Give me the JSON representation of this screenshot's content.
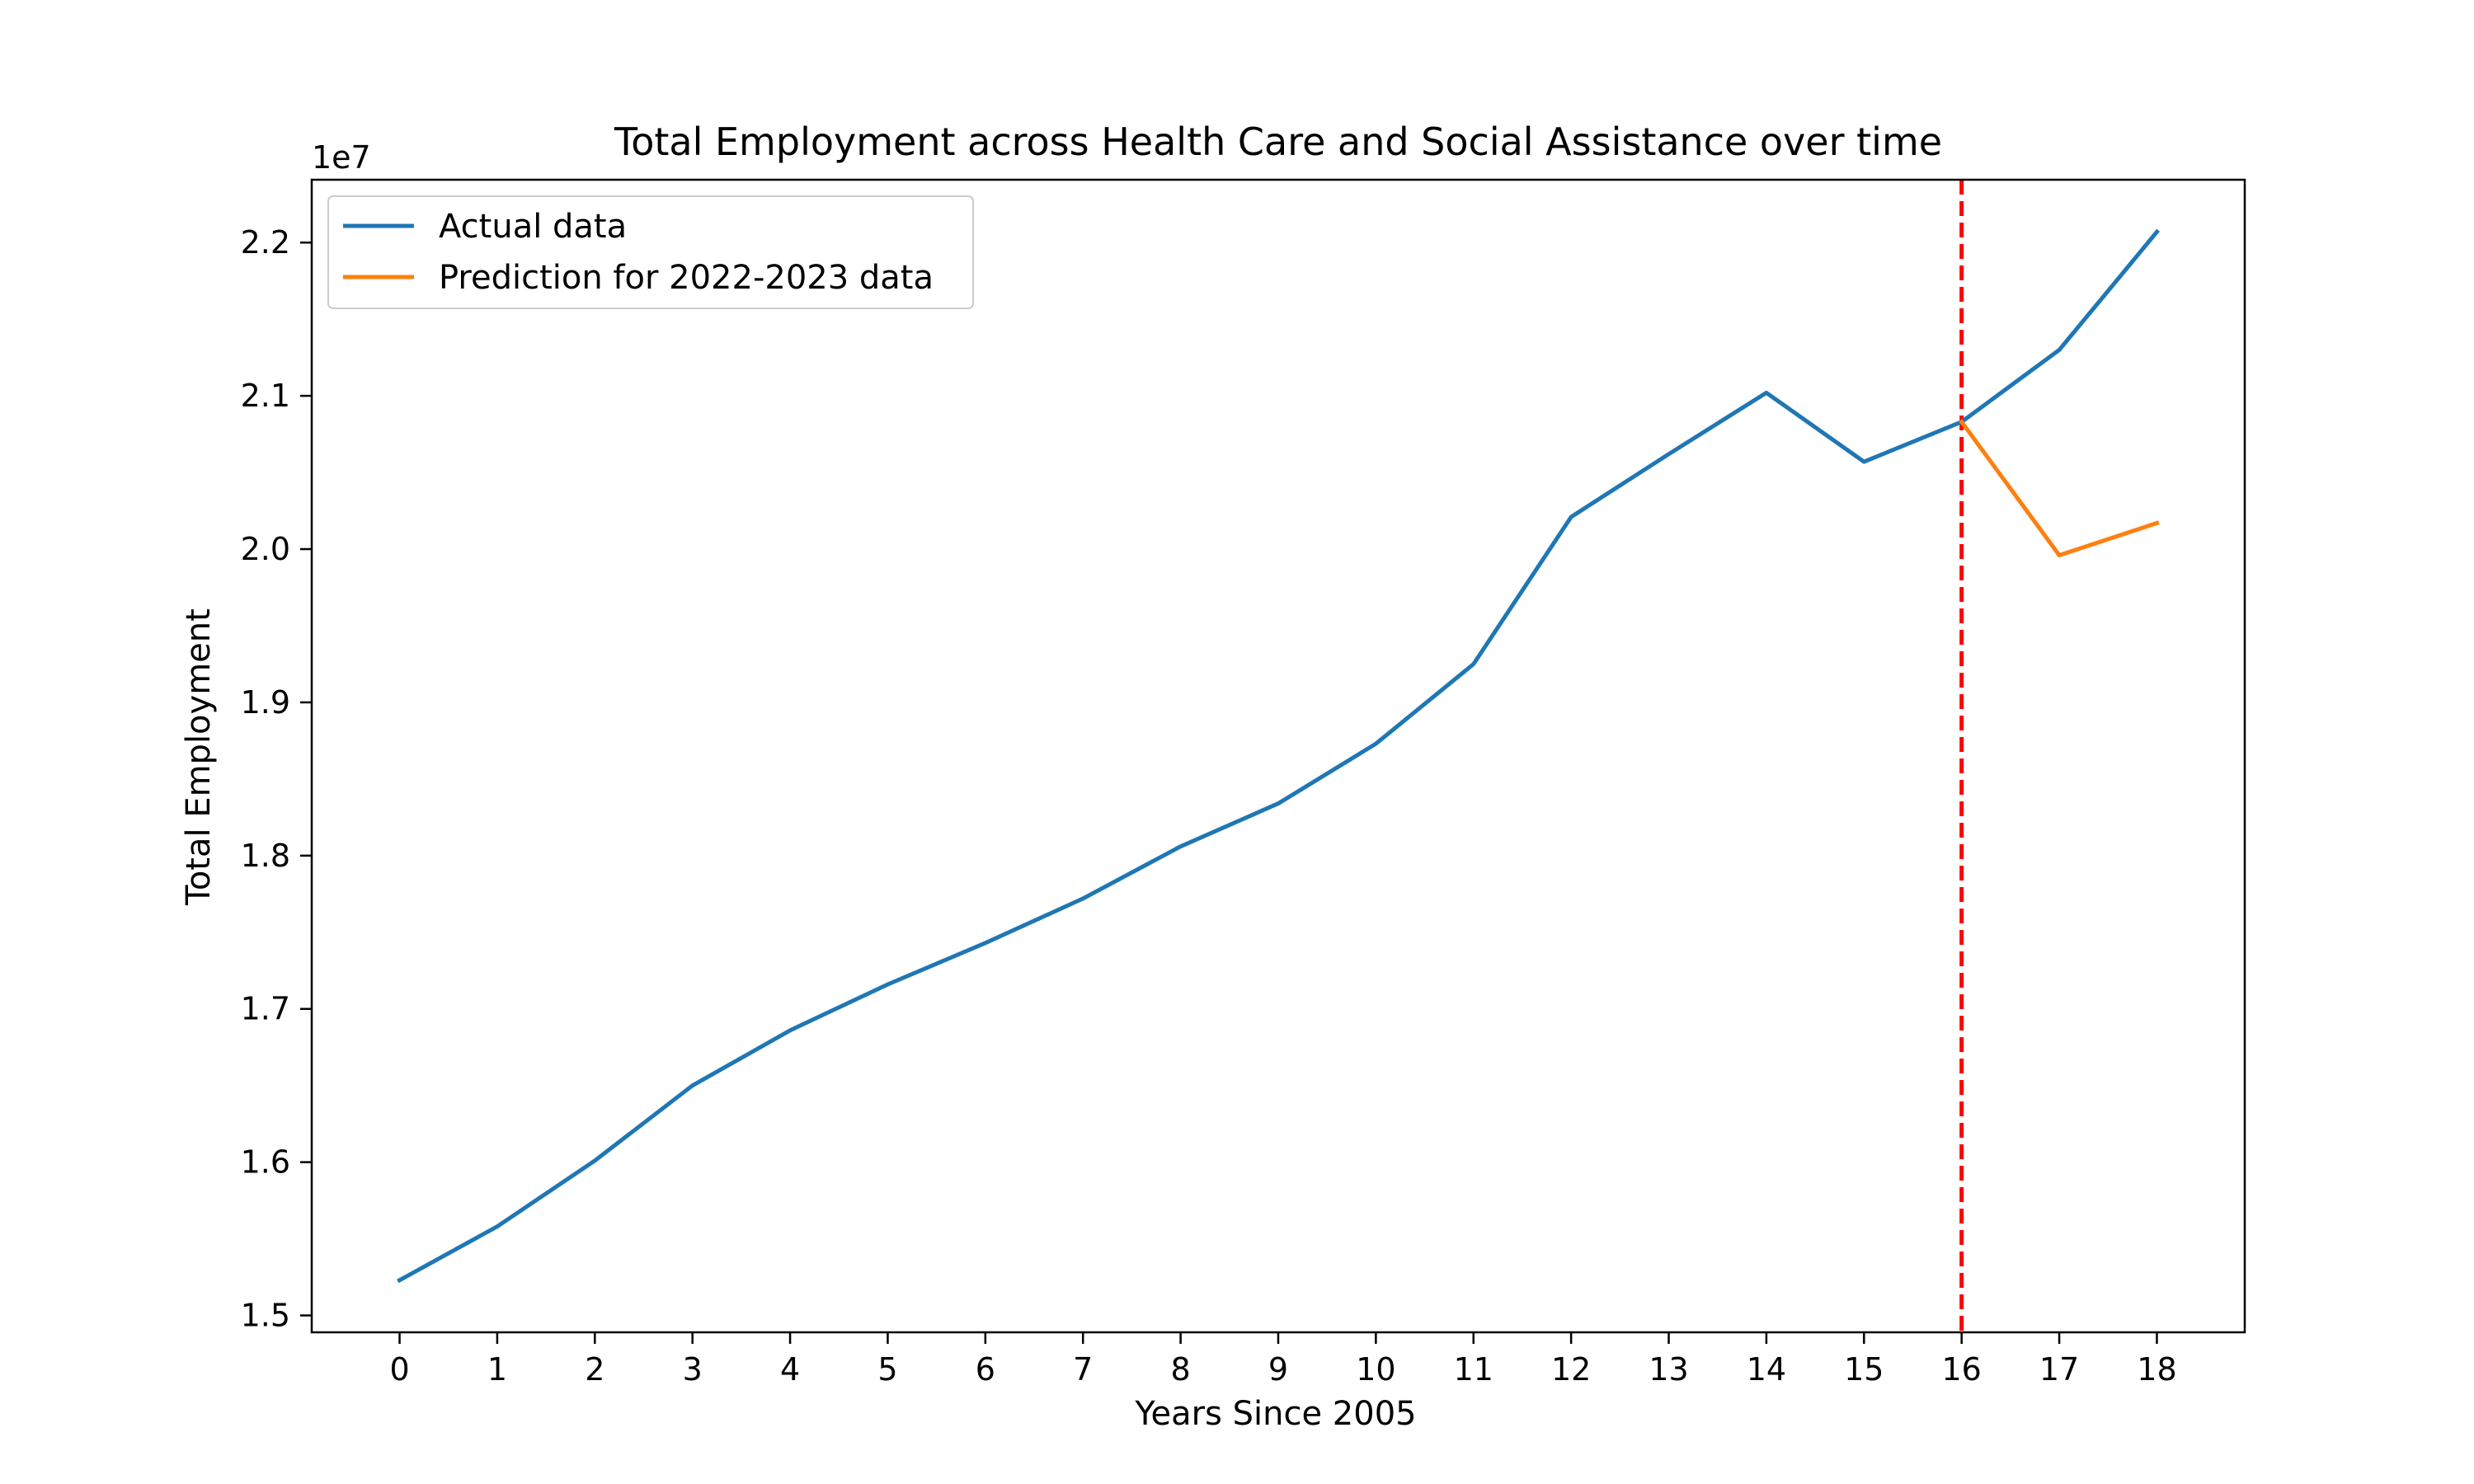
{
  "chart_data": {
    "type": "line",
    "title": "Total Employment across Health Care and Social Assistance over time",
    "xlabel": "Years Since 2005",
    "ylabel": "Total Employment",
    "y_offset_label": "1e7",
    "y_scale_factor": 10000000,
    "xlim": [
      -0.9,
      18.9
    ],
    "ylim": [
      14890000.0,
      22410000.0
    ],
    "x_ticks": [
      0,
      1,
      2,
      3,
      4,
      5,
      6,
      7,
      8,
      9,
      10,
      11,
      12,
      13,
      14,
      15,
      16,
      17,
      18
    ],
    "y_ticks": [
      {
        "value": 15000000,
        "label": "1.5"
      },
      {
        "value": 16000000,
        "label": "1.6"
      },
      {
        "value": 17000000,
        "label": "1.7"
      },
      {
        "value": 18000000,
        "label": "1.8"
      },
      {
        "value": 19000000,
        "label": "1.9"
      },
      {
        "value": 20000000,
        "label": "2.0"
      },
      {
        "value": 21000000,
        "label": "2.1"
      },
      {
        "value": 22000000,
        "label": "2.2"
      }
    ],
    "grid": false,
    "legend_position": "upper-left",
    "series": [
      {
        "name": "Actual data",
        "color": "#1f77b4",
        "x": [
          0,
          1,
          2,
          3,
          4,
          5,
          6,
          7,
          8,
          9,
          10,
          11,
          12,
          13,
          14,
          15,
          16,
          17,
          18
        ],
        "y": [
          15230000,
          15580000,
          16010000,
          16500000,
          16860000,
          17160000,
          17430000,
          17720000,
          18060000,
          18340000,
          18730000,
          19250000,
          20210000,
          20620000,
          21020000,
          20570000,
          20830000,
          21300000,
          22070000
        ]
      },
      {
        "name": "Prediction for 2022-2023 data",
        "color": "#ff7f0e",
        "x": [
          16,
          17,
          18
        ],
        "y": [
          20830000,
          19960000,
          20170000
        ]
      }
    ],
    "vertical_line": {
      "x": 16,
      "color": "#ff0000",
      "style": "dashed"
    }
  }
}
